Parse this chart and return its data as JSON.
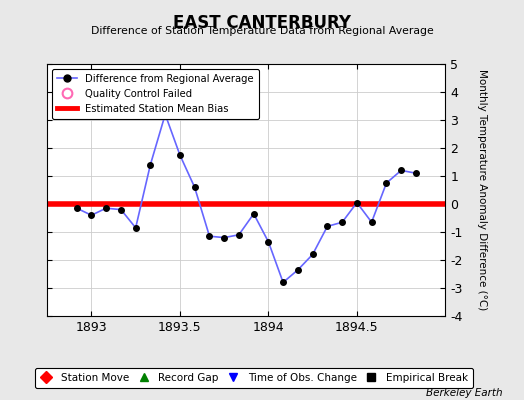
{
  "title": "EAST CANTERBURY",
  "subtitle": "Difference of Station Temperature Data from Regional Average",
  "ylabel_right": "Monthly Temperature Anomaly Difference (°C)",
  "credit": "Berkeley Earth",
  "xlim": [
    1892.75,
    1895.0
  ],
  "ylim": [
    -4,
    5
  ],
  "xticks": [
    1893,
    1893.5,
    1894,
    1894.5
  ],
  "yticks": [
    -4,
    -3,
    -2,
    -1,
    0,
    1,
    2,
    3,
    4,
    5
  ],
  "bias_value": 0.0,
  "background_color": "#e8e8e8",
  "plot_bg_color": "#ffffff",
  "line_color": "#6666ff",
  "bias_color": "#ff0000",
  "x_data": [
    1892.917,
    1893.0,
    1893.083,
    1893.167,
    1893.25,
    1893.333,
    1893.417,
    1893.5,
    1893.583,
    1893.667,
    1893.75,
    1893.833,
    1893.917,
    1894.0,
    1894.083,
    1894.167,
    1894.25,
    1894.333,
    1894.417,
    1894.5,
    1894.583,
    1894.667,
    1894.75,
    1894.833
  ],
  "y_data": [
    -0.15,
    -0.4,
    -0.15,
    -0.2,
    -0.85,
    1.4,
    3.2,
    1.75,
    0.6,
    -1.15,
    -1.2,
    -1.1,
    -0.35,
    -1.35,
    -2.8,
    -2.35,
    -1.8,
    -0.8,
    -0.65,
    0.05,
    -0.65,
    0.75,
    1.2,
    1.1
  ],
  "marker_color": "#000000",
  "marker_size": 4,
  "grid_color": "#cccccc",
  "legend_items": [
    {
      "label": "Difference from Regional Average",
      "color": "#6666ff",
      "marker": "o",
      "linestyle": "-"
    },
    {
      "label": "Quality Control Failed",
      "color": "#ff69b4",
      "marker": "o",
      "linestyle": "none"
    },
    {
      "label": "Estimated Station Mean Bias",
      "color": "#ff0000",
      "marker": "none",
      "linestyle": "-"
    }
  ],
  "bottom_legend": [
    {
      "label": "Station Move",
      "color": "#ff0000",
      "marker": "D"
    },
    {
      "label": "Record Gap",
      "color": "#008000",
      "marker": "^"
    },
    {
      "label": "Time of Obs. Change",
      "color": "#0000ff",
      "marker": "v"
    },
    {
      "label": "Empirical Break",
      "color": "#000000",
      "marker": "s"
    }
  ]
}
